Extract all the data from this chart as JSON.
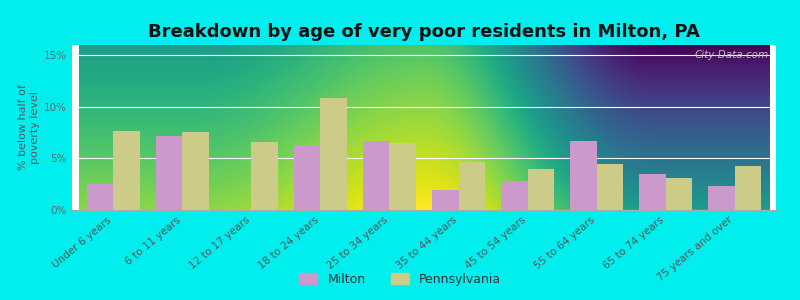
{
  "title": "Breakdown by age of very poor residents in Milton, PA",
  "ylabel": "% below half of\npoverty level",
  "categories": [
    "Under 6 years",
    "6 to 11 years",
    "12 to 17 years",
    "18 to 24 years",
    "25 to 34 years",
    "35 to 44 years",
    "45 to 54 years",
    "55 to 64 years",
    "65 to 74 years",
    "75 years and over"
  ],
  "milton_values": [
    2.5,
    7.2,
    0.0,
    6.3,
    6.7,
    1.9,
    2.8,
    6.7,
    3.5,
    2.3
  ],
  "pennsylvania_values": [
    7.7,
    7.6,
    6.6,
    10.9,
    6.5,
    4.7,
    4.0,
    4.5,
    3.1,
    4.3
  ],
  "milton_color": "#cc99cc",
  "pennsylvania_color": "#cccc88",
  "background_color": "#00eeee",
  "plot_bg_top": "#e8edd8",
  "plot_bg_bottom": "#f0f5e8",
  "ylim": [
    0,
    16
  ],
  "yticks": [
    0,
    5,
    10,
    15
  ],
  "ytick_labels": [
    "0%",
    "5%",
    "10%",
    "15%"
  ],
  "bar_width": 0.38,
  "title_fontsize": 13,
  "ylabel_fontsize": 8,
  "tick_fontsize": 7.5,
  "legend_fontsize": 9
}
